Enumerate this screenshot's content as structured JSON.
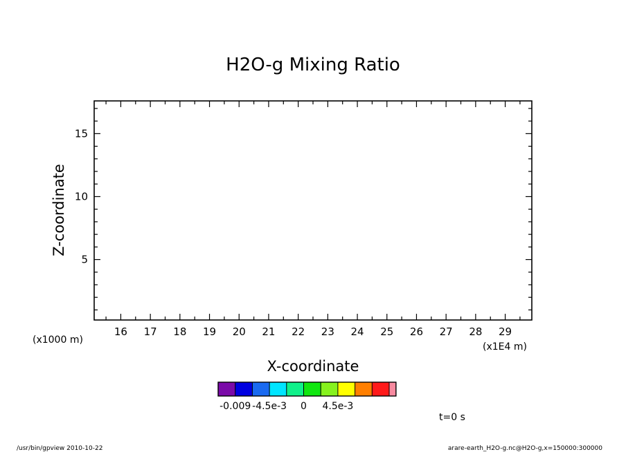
{
  "chart_data": {
    "type": "heatmap",
    "title": "H2O-g Mixing Ratio",
    "xlabel": "X-coordinate",
    "ylabel": "Z-coordinate",
    "x_multiplier": "(x1E4 m)",
    "y_multiplier": "(x1000 m)",
    "xlim": [
      15.1,
      29.9
    ],
    "ylim": [
      0.2,
      17.6
    ],
    "xticks": [
      16,
      17,
      18,
      19,
      20,
      21,
      22,
      23,
      24,
      25,
      26,
      27,
      28,
      29
    ],
    "yticks": [
      5,
      10,
      15
    ],
    "time_label": "t=0 s",
    "colorbar": {
      "colors": [
        "#7a0aa8",
        "#0000e0",
        "#1a6af0",
        "#00e5ff",
        "#10f08a",
        "#10e610",
        "#86f21e",
        "#ffff00",
        "#ff7f00",
        "#ff1a1a",
        "#f88aa0"
      ],
      "tick_labels": [
        "-0.009",
        "-4.5e-3",
        "0",
        "4.5e-3"
      ],
      "tick_values": [
        -0.009,
        -0.0045,
        0,
        0.0045
      ],
      "level_min": -0.01125,
      "level_step": 0.00225
    }
  },
  "footer": {
    "left": "/usr/bin/gpview   2010-10-22",
    "right": "arare-earth_H2O-g.nc@H2O-g,x=150000:300000"
  }
}
